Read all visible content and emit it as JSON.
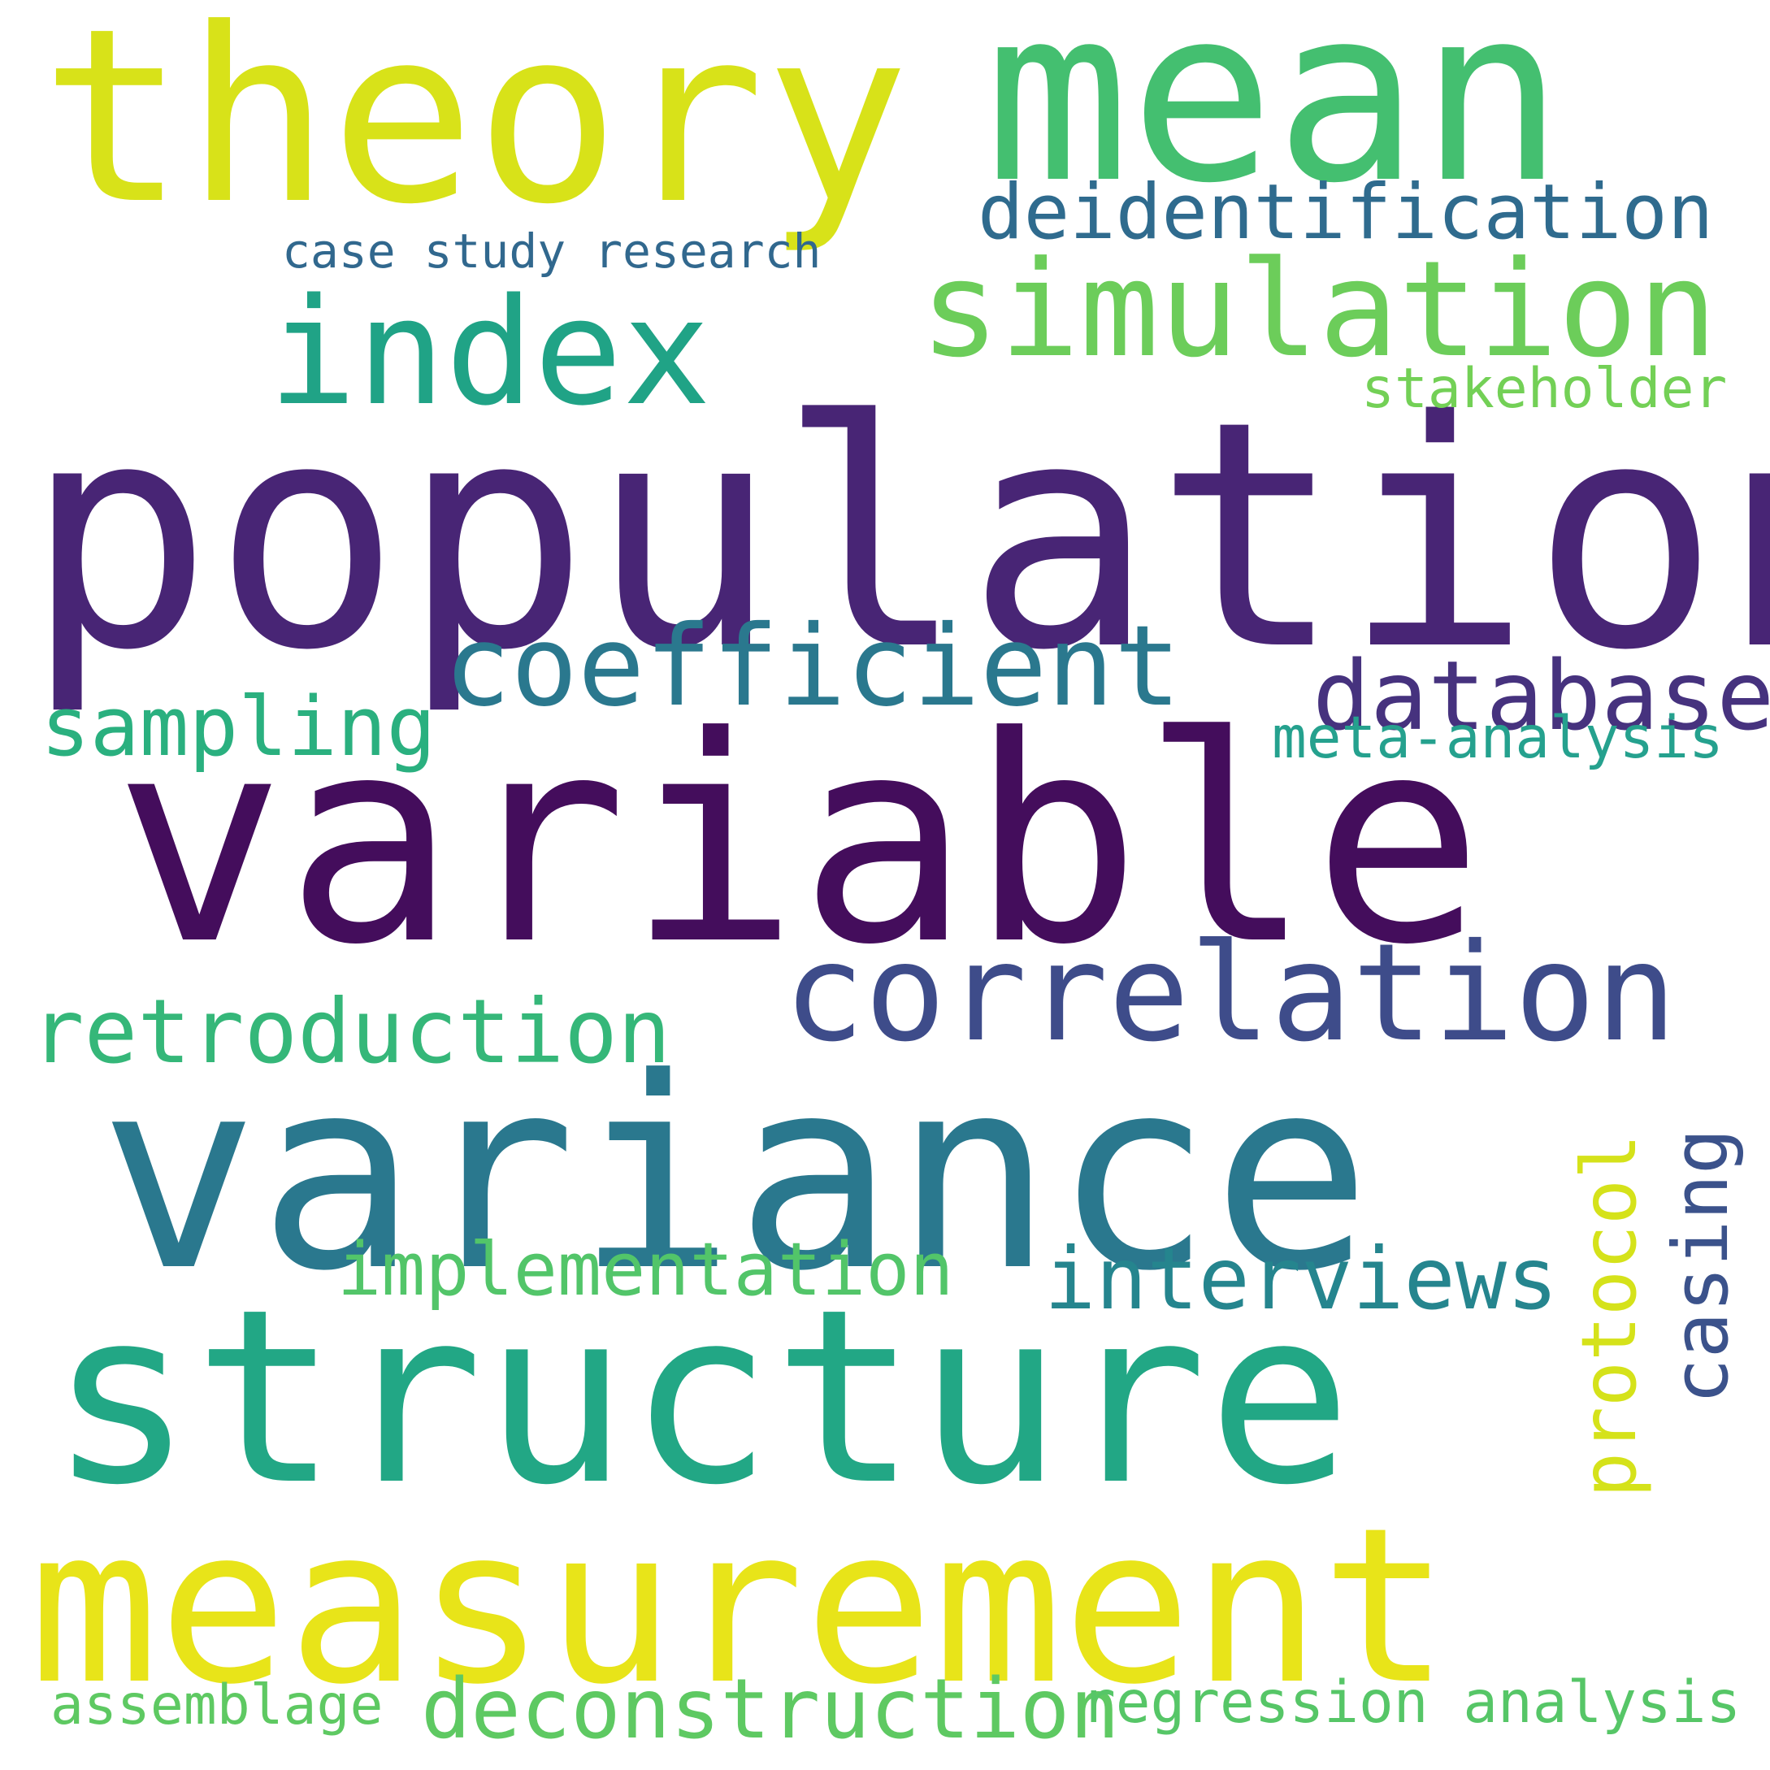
{
  "words": [
    {
      "text": "population",
      "color": "#482575"
    },
    {
      "text": "variable",
      "color": "#440d5c"
    },
    {
      "text": "variance",
      "color": "#2a788e"
    },
    {
      "text": "structure",
      "color": "#22a785"
    },
    {
      "text": "measurement",
      "color": "#e8e419"
    },
    {
      "text": "theory",
      "color": "#d8e219"
    },
    {
      "text": "mean",
      "color": "#44bf70"
    },
    {
      "text": "simulation",
      "color": "#6ccd5a"
    },
    {
      "text": "index",
      "color": "#20a386"
    },
    {
      "text": "correlation",
      "color": "#3e4c8a"
    },
    {
      "text": "coefficient",
      "color": "#2a788e"
    },
    {
      "text": "database",
      "color": "#46327e"
    },
    {
      "text": "retroduction",
      "color": "#35b779"
    },
    {
      "text": "deidentification",
      "color": "#2f6b8e"
    },
    {
      "text": "interviews",
      "color": "#25858e"
    },
    {
      "text": "protocol",
      "color": "#d5e21a"
    },
    {
      "text": "casing",
      "color": "#3b528b"
    },
    {
      "text": "implementation",
      "color": "#52c569"
    },
    {
      "text": "deconstruction",
      "color": "#5ec962"
    },
    {
      "text": "sampling",
      "color": "#2ab07f"
    },
    {
      "text": "meta-analysis",
      "color": "#25a18e"
    },
    {
      "text": "stakeholder",
      "color": "#73d056"
    },
    {
      "text": "regression analysis",
      "color": "#56c667"
    },
    {
      "text": "assemblage",
      "color": "#5ec962"
    },
    {
      "text": "case study research",
      "color": "#31688e"
    }
  ]
}
